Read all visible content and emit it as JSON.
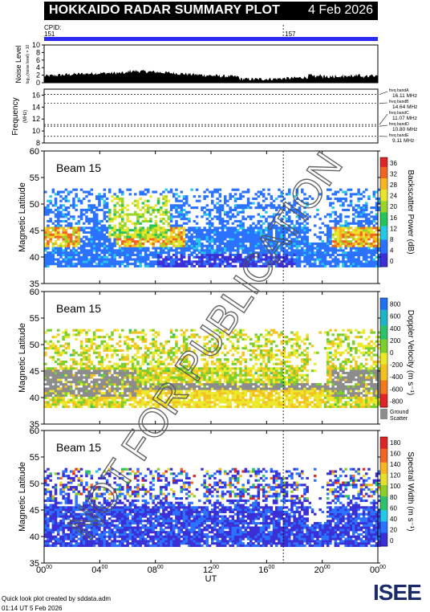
{
  "header": {
    "title": "HOKKAIDO RADAR SUMMARY PLOT",
    "date": "4 Feb 2026"
  },
  "cpid": {
    "label": "CPID:",
    "values": [
      "151",
      "157"
    ]
  },
  "colors": {
    "cpid_bar": "#2a2af0",
    "ground_scatter": "#8c8c8c"
  },
  "noise_panel": {
    "ylabel": "Noise Level",
    "ylabel_sub": "log₁₀(noise level) × 10",
    "yticks": [
      "0",
      "2",
      "4",
      "6",
      "8",
      "10"
    ]
  },
  "freq_panel": {
    "ylabel": "Frequency",
    "unit": "(MHz)",
    "yticks": [
      "8",
      "10",
      "12",
      "14",
      "16"
    ],
    "bands": [
      {
        "label": "freq bandA",
        "value": "16.11 MHz"
      },
      {
        "label": "freq bandB",
        "value": "14.64 MHz"
      },
      {
        "label": "freq bandC",
        "value": "11.07 MHz"
      },
      {
        "label": "freq bandD",
        "value": "10.80 MHz"
      },
      {
        "label": "freq bandE",
        "value": "9.11 MHz"
      }
    ]
  },
  "panels": [
    {
      "beam": "Beam 15",
      "ylabel": "Magnetic Latitude",
      "cbar_label": "Backscatter Power (dB)",
      "cbar_ticks": [
        "0",
        "4",
        "8",
        "12",
        "16",
        "20",
        "24",
        "28",
        "32",
        "36"
      ]
    },
    {
      "beam": "Beam 15",
      "ylabel": "Magnetic Latitude",
      "cbar_label": "Doppler Velocity (m s⁻¹)",
      "cbar_ticks": [
        "-800",
        "-600",
        "-400",
        "-200",
        "0",
        "200",
        "400",
        "600",
        "800"
      ],
      "gs_label_1": "Ground",
      "gs_label_2": "Scatter"
    },
    {
      "beam": "Beam 15",
      "ylabel": "Magnetic Latitude",
      "cbar_label": "Spectral Width (m s⁻¹)",
      "cbar_ticks": [
        "0",
        "20",
        "40",
        "60",
        "80",
        "100",
        "120",
        "140",
        "160",
        "180"
      ]
    }
  ],
  "lat_ticks": [
    "35",
    "40",
    "45",
    "50",
    "55",
    "60"
  ],
  "x_axis": {
    "label": "UT",
    "ticks": [
      "00",
      "04",
      "08",
      "12",
      "16",
      "20",
      "00"
    ],
    "tick_sup": "00"
  },
  "footer": {
    "line1": "Quick look plot created by sddata.adm",
    "line2": "01:14 UT  5 Feb 2026"
  },
  "watermark": "NOT FOR PUBLICATION",
  "logo": "ISEE",
  "chart_data": {
    "type": "heatmap",
    "title": "HOKKAIDO RADAR SUMMARY PLOT",
    "x": {
      "label": "UT",
      "range_hours": [
        0,
        24
      ],
      "ticks": [
        "00",
        "04",
        "08",
        "12",
        "16",
        "20",
        "00"
      ]
    },
    "y": {
      "label": "Magnetic Latitude",
      "range": [
        35,
        60
      ]
    },
    "cpid_change_hour": 17.2,
    "series": [
      {
        "name": "Backscatter Power (dB)",
        "range": [
          0,
          38
        ]
      },
      {
        "name": "Doppler Velocity (m s⁻¹)",
        "range": [
          -900,
          900
        ]
      },
      {
        "name": "Spectral Width (m s⁻¹)",
        "range": [
          0,
          190
        ]
      }
    ],
    "noise": {
      "ylim": [
        0,
        10
      ],
      "typical_level": 1.5
    },
    "frequency": {
      "ylim": [
        8,
        17
      ],
      "bands_mhz": [
        16.11,
        14.64,
        11.07,
        10.8,
        9.11
      ]
    }
  }
}
